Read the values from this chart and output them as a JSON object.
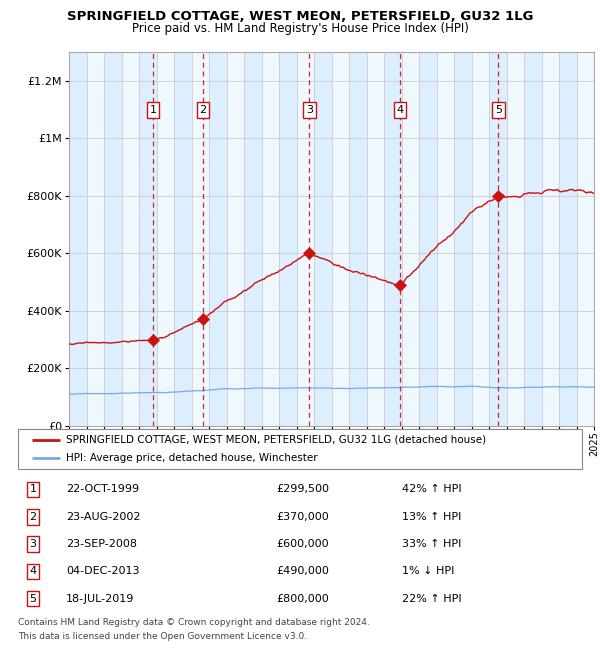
{
  "title": "SPRINGFIELD COTTAGE, WEST MEON, PETERSFIELD, GU32 1LG",
  "subtitle": "Price paid vs. HM Land Registry's House Price Index (HPI)",
  "x_start_year": 1995,
  "x_end_year": 2025,
  "y_min": 0,
  "y_max": 1300000,
  "y_ticks": [
    0,
    200000,
    400000,
    600000,
    800000,
    1000000,
    1200000
  ],
  "y_tick_labels": [
    "£0",
    "£200K",
    "£400K",
    "£600K",
    "£800K",
    "£1M",
    "£1.2M"
  ],
  "hpi_color": "#7aaadd",
  "price_color": "#cc1111",
  "sale_marker_color": "#cc1111",
  "vline_color": "#cc1111",
  "plot_bg_color": "#ddeeff",
  "white_band_color": "#ffffff",
  "grid_color": "#cccccc",
  "sales": [
    {
      "num": 1,
      "date": "22-OCT-1999",
      "year": 1999.8,
      "price": 299500,
      "pct": "42%",
      "dir": "↑"
    },
    {
      "num": 2,
      "date": "23-AUG-2002",
      "year": 2002.65,
      "price": 370000,
      "pct": "13%",
      "dir": "↑"
    },
    {
      "num": 3,
      "date": "23-SEP-2008",
      "year": 2008.73,
      "price": 600000,
      "pct": "33%",
      "dir": "↑"
    },
    {
      "num": 4,
      "date": "04-DEC-2013",
      "year": 2013.92,
      "price": 490000,
      "pct": "1%",
      "dir": "↓"
    },
    {
      "num": 5,
      "date": "18-JUL-2019",
      "year": 2019.54,
      "price": 800000,
      "pct": "22%",
      "dir": "↑"
    }
  ],
  "legend_line1": "SPRINGFIELD COTTAGE, WEST MEON, PETERSFIELD, GU32 1LG (detached house)",
  "legend_line2": "HPI: Average price, detached house, Winchester",
  "footer1": "Contains HM Land Registry data © Crown copyright and database right 2024.",
  "footer2": "This data is licensed under the Open Government Licence v3.0.",
  "hpi_base": 110000,
  "price_base_scale": 2.0,
  "noise_seed": 17
}
